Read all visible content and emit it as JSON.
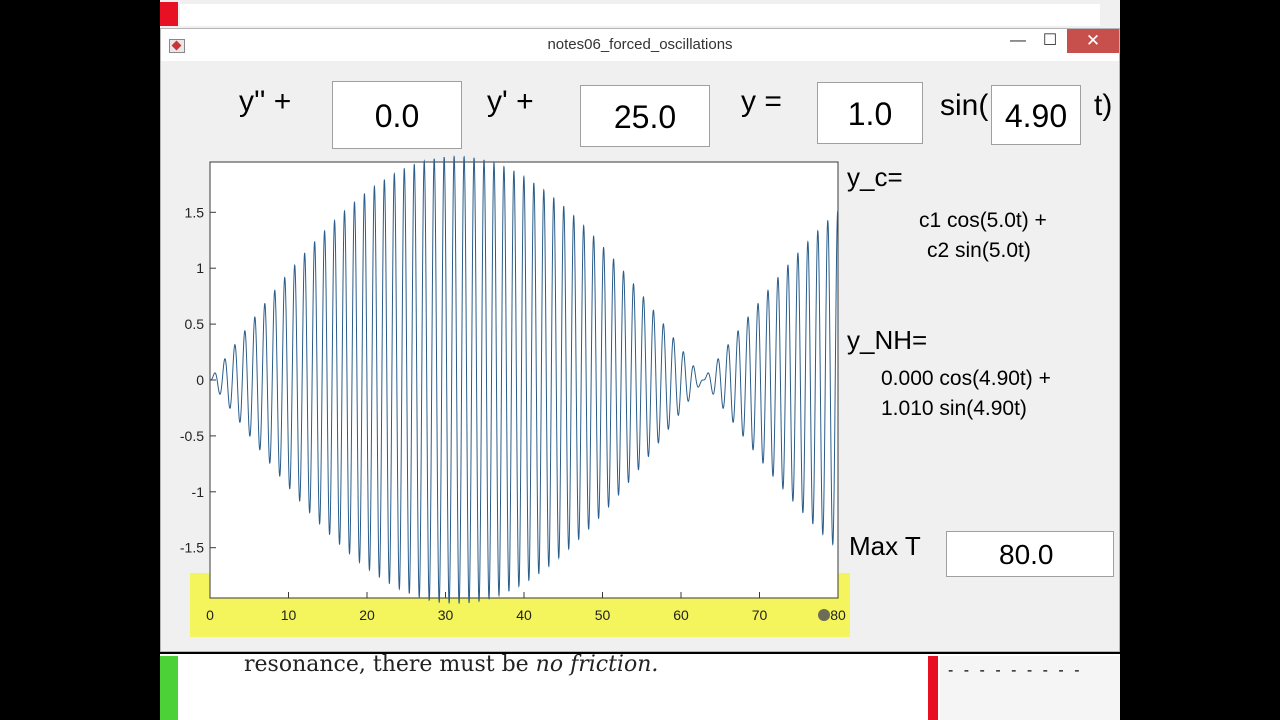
{
  "window": {
    "title": "notes06_forced_oscillations",
    "minimize_glyph": "—",
    "maximize_glyph": "☐",
    "close_glyph": "✕"
  },
  "equation": {
    "y2_label": "y'' +",
    "y2_coef": "0.0",
    "y1_label": "y' +",
    "y1_coef": "25.0",
    "y0_label": "y =",
    "amplitude": "1.0",
    "sin_label": "sin(",
    "omega": "4.90",
    "close_label": "t)"
  },
  "side": {
    "yc_label": "y_c=",
    "yc_line1": "c1 cos(5.0t) +",
    "yc_line2": "c2 sin(5.0t)",
    "ynh_label": "y_NH=",
    "ynh_line1": "0.000 cos(4.90t) +",
    "ynh_line2": "1.010 sin(4.90t)",
    "maxt_label": "Max T",
    "maxt_value": "80.0"
  },
  "chart_data": {
    "type": "line",
    "series": [
      {
        "function": "1.010*sin(4.90t) - 0.990*sin(5.0t)",
        "t_range": [
          0,
          80
        ]
      }
    ],
    "xlim": [
      0,
      80
    ],
    "ylim": [
      -1.95,
      1.95
    ],
    "x_ticks": [
      0,
      10,
      20,
      30,
      40,
      50,
      60,
      70,
      80
    ],
    "x_tick_labels": [
      "0",
      "10",
      "20",
      "30",
      "40",
      "50",
      "60",
      "70",
      "80"
    ],
    "y_ticks": [
      1.5,
      1,
      0.5,
      0,
      -0.5,
      -1,
      -1.5
    ],
    "y_tick_labels": [
      "1.5",
      "1",
      "0.5",
      "0",
      "-0.5",
      "-1",
      "-1.5"
    ],
    "line_color": "#2b5d8a"
  },
  "bottom": {
    "text_before": "resonance, there must be ",
    "text_italic": "no friction.",
    "toolbar_dashes": "- - - - - - - - -"
  }
}
